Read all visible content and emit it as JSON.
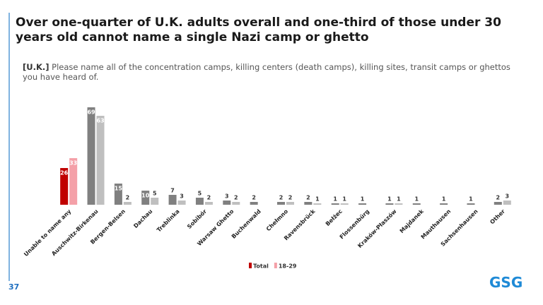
{
  "chart_data": {
    "type": "bar",
    "title": "Over one-quarter of U.K. adults overall and one-third of those under 30 years old cannot name a single Nazi camp or ghetto",
    "subtitle_tag": "[U.K.]",
    "subtitle": "Please name all of the concentration camps, killing centers (death camps), killing sites, transit camps or ghettos you have heard of.",
    "categories": [
      "Unable to name any",
      "Auschwitz-Birkenau",
      "Bergen-Belsen",
      "Dachau",
      "Treblinka",
      "Sobibór",
      "Warsaw Ghetto",
      "Buchenwald",
      "Chełmno",
      "Ravensbrück",
      "Bełżec",
      "Flossenbürg",
      "Kraków-Płaszów",
      "Majdanek",
      "Mauthausen",
      "Sachsenhausen",
      "Other"
    ],
    "series": [
      {
        "name": "Total",
        "color": "#c00000",
        "colors": [
          "#c00000",
          "#808080",
          "#808080",
          "#808080",
          "#808080",
          "#808080",
          "#808080",
          "#808080",
          "#808080",
          "#808080",
          "#808080",
          "#808080",
          "#808080",
          "#808080",
          "#808080",
          "#808080",
          "#808080"
        ],
        "values": [
          26,
          69,
          15,
          10,
          7,
          5,
          3,
          2,
          2,
          2,
          1,
          1,
          1,
          1,
          1,
          1,
          2
        ]
      },
      {
        "name": "18-29",
        "color": "#f4a0a8",
        "colors": [
          "#f4a0a8",
          "#bfbfbf",
          "#bfbfbf",
          "#bfbfbf",
          "#bfbfbf",
          "#bfbfbf",
          "#bfbfbf",
          "#bfbfbf",
          "#bfbfbf",
          "#bfbfbf",
          "#bfbfbf",
          "#bfbfbf",
          "#bfbfbf",
          "#bfbfbf",
          "#bfbfbf",
          "#bfbfbf",
          "#bfbfbf"
        ],
        "values": [
          33,
          63,
          2,
          5,
          3,
          2,
          2,
          null,
          2,
          1,
          1,
          null,
          1,
          null,
          null,
          null,
          3
        ]
      }
    ]
  },
  "page_number": "37",
  "logo": "GSG"
}
